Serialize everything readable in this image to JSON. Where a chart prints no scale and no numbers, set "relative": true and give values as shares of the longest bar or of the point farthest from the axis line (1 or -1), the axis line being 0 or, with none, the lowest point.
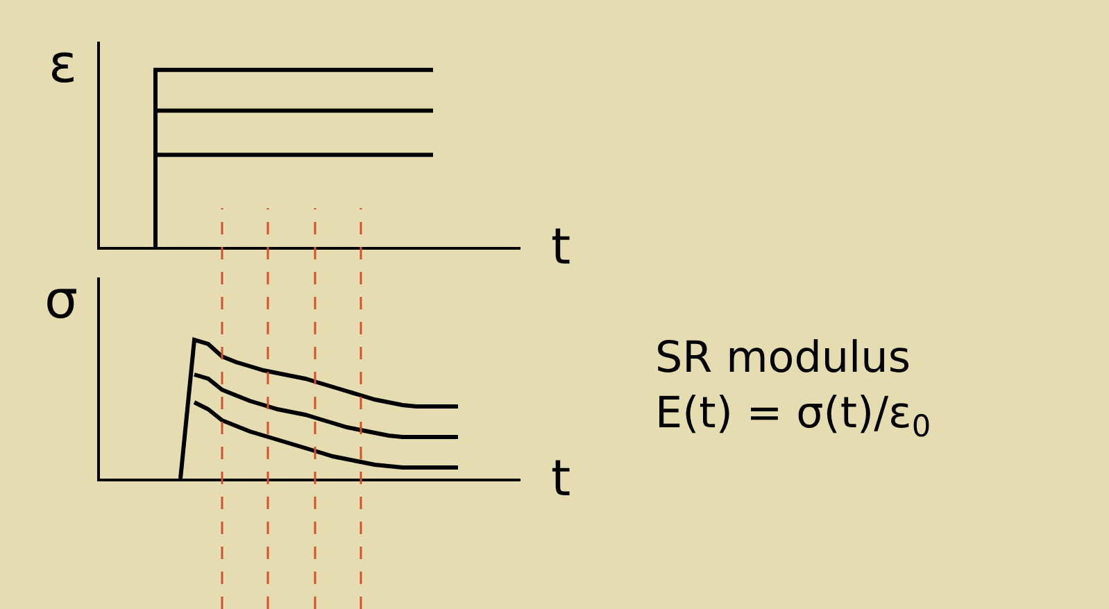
{
  "chart_data": [
    {
      "type": "step",
      "relative": true,
      "xlabel": "t",
      "ylabel": "ε",
      "grid": false,
      "categories": [
        null,
        null,
        null,
        null,
        null,
        null,
        null,
        null,
        null,
        null,
        null,
        null
      ],
      "series": [
        {
          "color": "#000000",
          "values": [
            null,
            0,
            1,
            1,
            1,
            1,
            1,
            1,
            1,
            1,
            1,
            1
          ]
        },
        {
          "color": "#000000",
          "values": [
            null,
            0,
            0.77,
            0.77,
            0.77,
            0.77,
            0.77,
            0.77,
            0.77,
            0.77,
            0.77,
            0.77
          ]
        },
        {
          "color": "#000000",
          "values": [
            null,
            0,
            0.52,
            0.52,
            0.52,
            0.52,
            0.52,
            0.52,
            0.52,
            0.52,
            0.52,
            0.52
          ]
        }
      ]
    },
    {
      "type": "line",
      "relative": true,
      "xlabel": "t",
      "ylabel": "σ",
      "grid": false,
      "categories": [
        null,
        null,
        null,
        null,
        null,
        null,
        null,
        null,
        null,
        null,
        null,
        null,
        null,
        null,
        null,
        null,
        null,
        null,
        null,
        null,
        null,
        null
      ],
      "series": [
        {
          "color": "#000000",
          "values": [
            null,
            0,
            1.0,
            0.97,
            0.88,
            0.84,
            0.81,
            0.78,
            0.76,
            0.74,
            0.72,
            0.69,
            0.66,
            0.63,
            0.6,
            0.57,
            0.55,
            0.53,
            0.52,
            0.52,
            0.52,
            0.52
          ]
        },
        {
          "color": "#000000",
          "values": [
            null,
            null,
            0.75,
            0.72,
            0.64,
            0.6,
            0.56,
            0.53,
            0.5,
            0.48,
            0.46,
            0.43,
            0.4,
            0.37,
            0.35,
            0.33,
            0.31,
            0.3,
            0.3,
            0.3,
            0.3,
            0.3
          ]
        },
        {
          "color": "#000000",
          "values": [
            null,
            null,
            0.55,
            0.5,
            0.42,
            0.38,
            0.34,
            0.31,
            0.28,
            0.25,
            0.22,
            0.19,
            0.16,
            0.14,
            0.12,
            0.1,
            0.09,
            0.08,
            0.08,
            0.08,
            0.08,
            0.08
          ]
        }
      ],
      "annotations": [
        "SR modulus",
        "E(t) = σ(t)/ε$_{0}$"
      ]
    }
  ]
}
